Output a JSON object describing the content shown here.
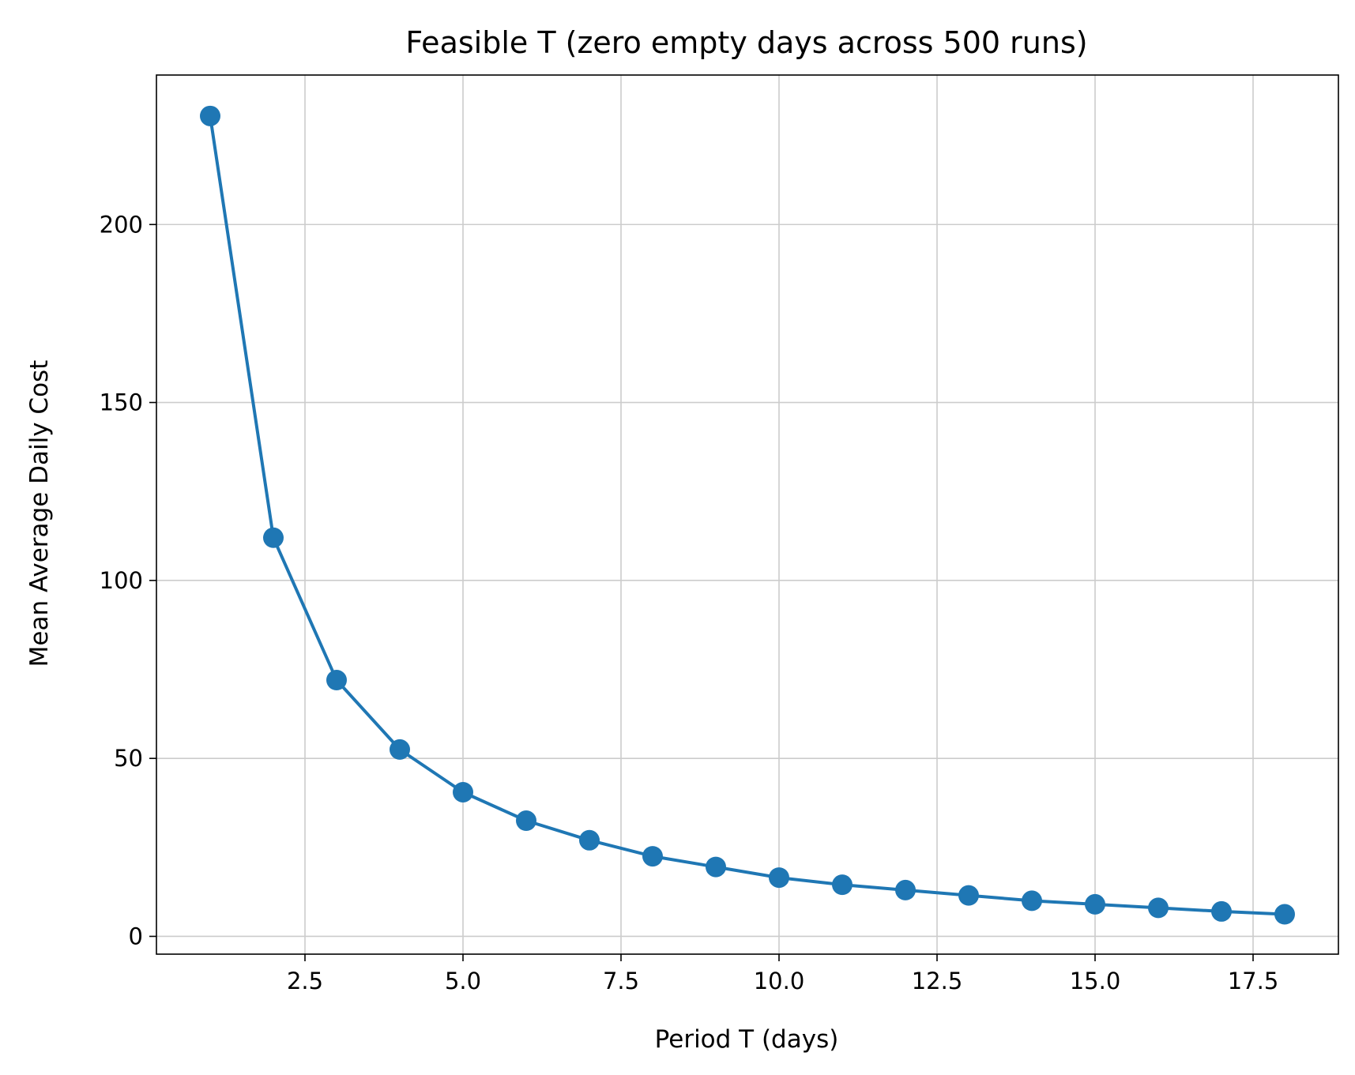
{
  "chart_data": {
    "type": "line",
    "title": "Feasible T (zero empty days across 500 runs)",
    "xlabel": "Period T (days)",
    "ylabel": "Mean Average Daily Cost",
    "xlim": [
      0.15,
      18.85
    ],
    "ylim": [
      -5,
      242
    ],
    "xticks": [
      2.5,
      5.0,
      7.5,
      10.0,
      12.5,
      15.0,
      17.5
    ],
    "xtick_labels": [
      "2.5",
      "5.0",
      "7.5",
      "10.0",
      "12.5",
      "15.0",
      "17.5"
    ],
    "yticks": [
      0,
      50,
      100,
      150,
      200
    ],
    "ytick_labels": [
      "0",
      "50",
      "100",
      "150",
      "200"
    ],
    "grid": true,
    "markers": true,
    "color": "#1f77b4",
    "series": [
      {
        "x": [
          1,
          2,
          3,
          4,
          5,
          6,
          7,
          8,
          9,
          10,
          11,
          12,
          13,
          14,
          15,
          16,
          17,
          18
        ],
        "y": [
          230.5,
          112,
          72,
          52.5,
          40.5,
          32.5,
          27,
          22.5,
          19.5,
          16.5,
          14.5,
          13,
          11.5,
          10,
          9,
          8,
          7,
          6.2
        ]
      }
    ]
  }
}
